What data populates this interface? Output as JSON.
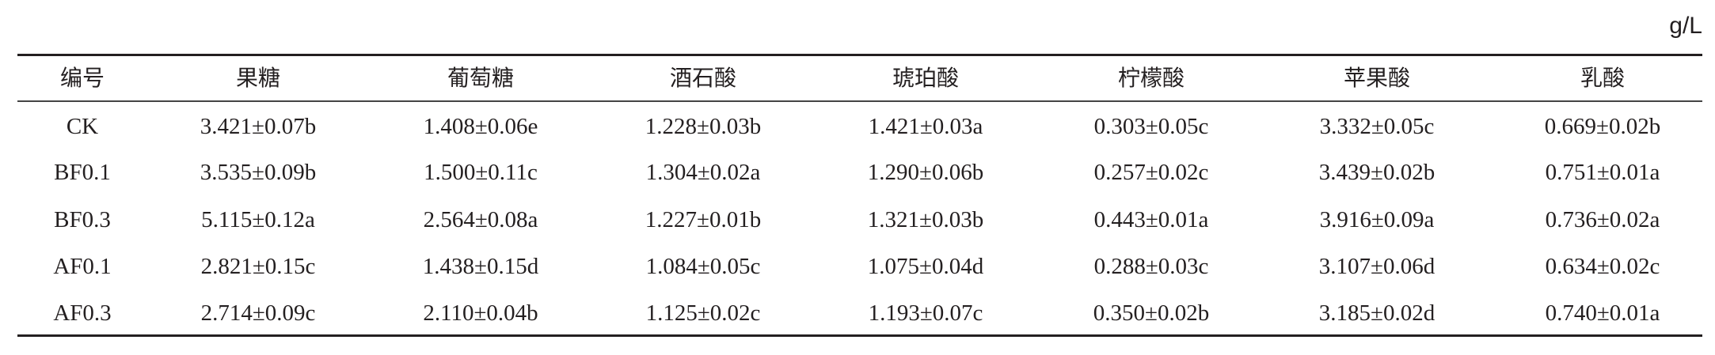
{
  "unit": "g/L",
  "table": {
    "headers": [
      "编号",
      "果糖",
      "葡萄糖",
      "酒石酸",
      "琥珀酸",
      "柠檬酸",
      "苹果酸",
      "乳酸"
    ],
    "rows": [
      [
        "CK",
        "3.421±0.07b",
        "1.408±0.06e",
        "1.228±0.03b",
        "1.421±0.03a",
        "0.303±0.05c",
        "3.332±0.05c",
        "0.669±0.02b"
      ],
      [
        "BF0.1",
        "3.535±0.09b",
        "1.500±0.11c",
        "1.304±0.02a",
        "1.290±0.06b",
        "0.257±0.02c",
        "3.439±0.02b",
        "0.751±0.01a"
      ],
      [
        "BF0.3",
        "5.115±0.12a",
        "2.564±0.08a",
        "1.227±0.01b",
        "1.321±0.03b",
        "0.443±0.01a",
        "3.916±0.09a",
        "0.736±0.02a"
      ],
      [
        "AF0.1",
        "2.821±0.15c",
        "1.438±0.15d",
        "1.084±0.05c",
        "1.075±0.04d",
        "0.288±0.03c",
        "3.107±0.06d",
        "0.634±0.02c"
      ],
      [
        "AF0.3",
        "2.714±0.09c",
        "2.110±0.04b",
        "1.125±0.02c",
        "1.193±0.07c",
        "0.350±0.02b",
        "3.185±0.02d",
        "0.740±0.01a"
      ]
    ]
  }
}
